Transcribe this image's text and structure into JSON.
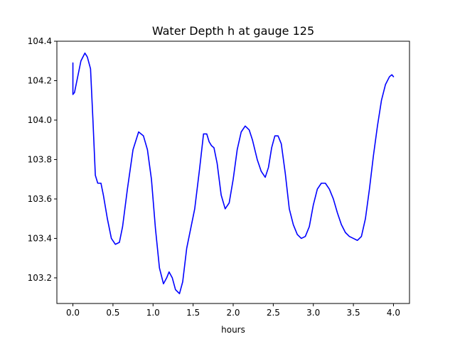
{
  "chart_data": {
    "type": "line",
    "title": "Water Depth h at gauge 125",
    "xlabel": "hours",
    "ylabel": "",
    "xlim": [
      -0.2,
      4.2
    ],
    "ylim": [
      103.07,
      104.4
    ],
    "xticks": [
      0.0,
      0.5,
      1.0,
      1.5,
      2.0,
      2.5,
      3.0,
      3.5,
      4.0
    ],
    "xtick_labels": [
      "0.0",
      "0.5",
      "1.0",
      "1.5",
      "2.0",
      "2.5",
      "3.0",
      "3.5",
      "4.0"
    ],
    "yticks": [
      103.2,
      103.4,
      103.6,
      103.8,
      104.0,
      104.2,
      104.4
    ],
    "ytick_labels": [
      "103.2",
      "103.4",
      "103.6",
      "103.8",
      "104.0",
      "104.2",
      "104.4"
    ],
    "grid": false,
    "legend": "none",
    "series": [
      {
        "color": "#0000ff",
        "x": [
          0.0,
          0.0,
          0.02,
          0.05,
          0.1,
          0.15,
          0.18,
          0.22,
          0.25,
          0.28,
          0.31,
          0.35,
          0.38,
          0.43,
          0.48,
          0.53,
          0.58,
          0.62,
          0.68,
          0.75,
          0.82,
          0.88,
          0.93,
          0.98,
          1.03,
          1.08,
          1.13,
          1.17,
          1.2,
          1.24,
          1.28,
          1.33,
          1.37,
          1.42,
          1.47,
          1.52,
          1.58,
          1.63,
          1.67,
          1.7,
          1.73,
          1.76,
          1.8,
          1.85,
          1.9,
          1.95,
          2.0,
          2.05,
          2.1,
          2.15,
          2.2,
          2.24,
          2.3,
          2.35,
          2.4,
          2.44,
          2.48,
          2.52,
          2.56,
          2.6,
          2.65,
          2.7,
          2.75,
          2.8,
          2.85,
          2.9,
          2.95,
          3.0,
          3.05,
          3.1,
          3.15,
          3.2,
          3.25,
          3.3,
          3.35,
          3.4,
          3.45,
          3.5,
          3.55,
          3.6,
          3.65,
          3.7,
          3.75,
          3.8,
          3.85,
          3.9,
          3.95,
          3.98,
          4.0
        ],
        "y": [
          104.29,
          104.13,
          104.14,
          104.2,
          104.3,
          104.34,
          104.32,
          104.26,
          104.0,
          103.72,
          103.68,
          103.68,
          103.62,
          103.5,
          103.4,
          103.37,
          103.38,
          103.46,
          103.65,
          103.85,
          103.94,
          103.92,
          103.85,
          103.7,
          103.45,
          103.25,
          103.17,
          103.2,
          103.23,
          103.2,
          103.14,
          103.12,
          103.18,
          103.35,
          103.45,
          103.55,
          103.75,
          103.93,
          103.93,
          103.89,
          103.87,
          103.86,
          103.78,
          103.62,
          103.55,
          103.58,
          103.7,
          103.85,
          103.94,
          103.97,
          103.95,
          103.9,
          103.8,
          103.74,
          103.71,
          103.76,
          103.86,
          103.92,
          103.92,
          103.88,
          103.73,
          103.55,
          103.47,
          103.42,
          103.4,
          103.41,
          103.46,
          103.57,
          103.65,
          103.68,
          103.68,
          103.65,
          103.6,
          103.53,
          103.47,
          103.43,
          103.41,
          103.4,
          103.39,
          103.41,
          103.5,
          103.65,
          103.82,
          103.97,
          104.1,
          104.18,
          104.22,
          104.23,
          104.22
        ]
      }
    ]
  }
}
